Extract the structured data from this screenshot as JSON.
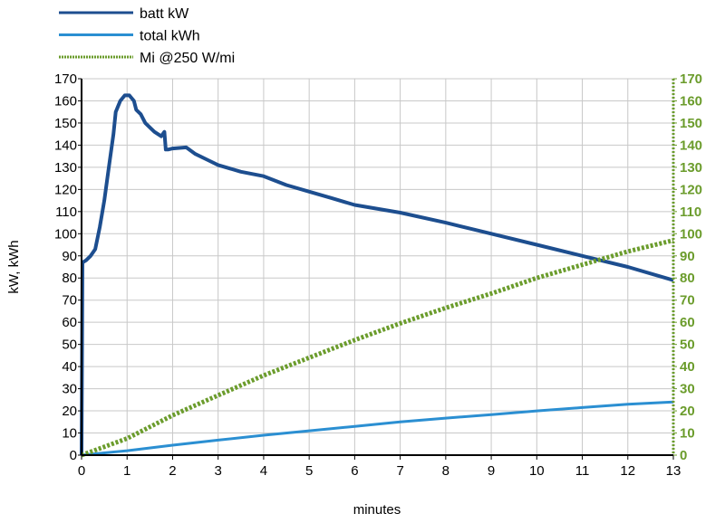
{
  "chart_data": {
    "type": "line",
    "xlabel": "minutes",
    "ylabel": "kW, kWh",
    "xlim": [
      0,
      13
    ],
    "ylim": [
      0,
      170
    ],
    "y2lim": [
      0,
      170
    ],
    "xticks": [
      0,
      1,
      2,
      3,
      4,
      5,
      6,
      7,
      8,
      9,
      10,
      11,
      12,
      13
    ],
    "yticks": [
      0,
      10,
      20,
      30,
      40,
      50,
      60,
      70,
      80,
      90,
      100,
      110,
      120,
      130,
      140,
      150,
      160,
      170
    ],
    "grid": true,
    "legend": "top-left",
    "series": [
      {
        "name": "batt kW",
        "axis": "left",
        "color": "#1d4e8f",
        "style": "solid",
        "x": [
          0,
          0.02,
          0.1,
          0.2,
          0.3,
          0.4,
          0.5,
          0.6,
          0.7,
          0.75,
          0.85,
          0.95,
          1.05,
          1.15,
          1.2,
          1.3,
          1.4,
          1.5,
          1.6,
          1.75,
          1.82,
          1.85,
          1.9,
          2.0,
          2.3,
          2.5,
          2.8,
          3.0,
          3.5,
          4,
          4.5,
          5,
          5.5,
          6,
          7,
          8,
          9,
          10,
          11,
          12,
          13
        ],
        "y": [
          0,
          87,
          88,
          90,
          93,
          103,
          115,
          130,
          145,
          155,
          160,
          162.5,
          162.5,
          160,
          156,
          154,
          150,
          148,
          146,
          144,
          146,
          138,
          138,
          138.5,
          139,
          136,
          133,
          131,
          128,
          126,
          122,
          119,
          116,
          113,
          109.5,
          105,
          100,
          95,
          90,
          85,
          79
        ]
      },
      {
        "name": "total kWh",
        "axis": "left",
        "color": "#2b8fd2",
        "style": "solid",
        "x": [
          0,
          1,
          2,
          3,
          4,
          5,
          6,
          7,
          8,
          9,
          10,
          11,
          12,
          13
        ],
        "y": [
          0,
          2,
          4.5,
          6.8,
          9,
          11,
          13,
          15,
          16.7,
          18.3,
          20,
          21.5,
          23,
          24
        ]
      },
      {
        "name": "Mi @250 W/mi",
        "axis": "right",
        "color": "#6b9c2c",
        "style": "dotted",
        "x": [
          0,
          1,
          2,
          3,
          4,
          5,
          6,
          7,
          8,
          9,
          10,
          11,
          12,
          13
        ],
        "y": [
          0,
          7.5,
          18,
          27,
          36,
          44,
          52,
          59.5,
          66.5,
          73,
          80,
          86,
          92,
          97
        ]
      }
    ],
    "axis_colors": {
      "left": "#000000",
      "right": "#6b9c2c"
    }
  }
}
